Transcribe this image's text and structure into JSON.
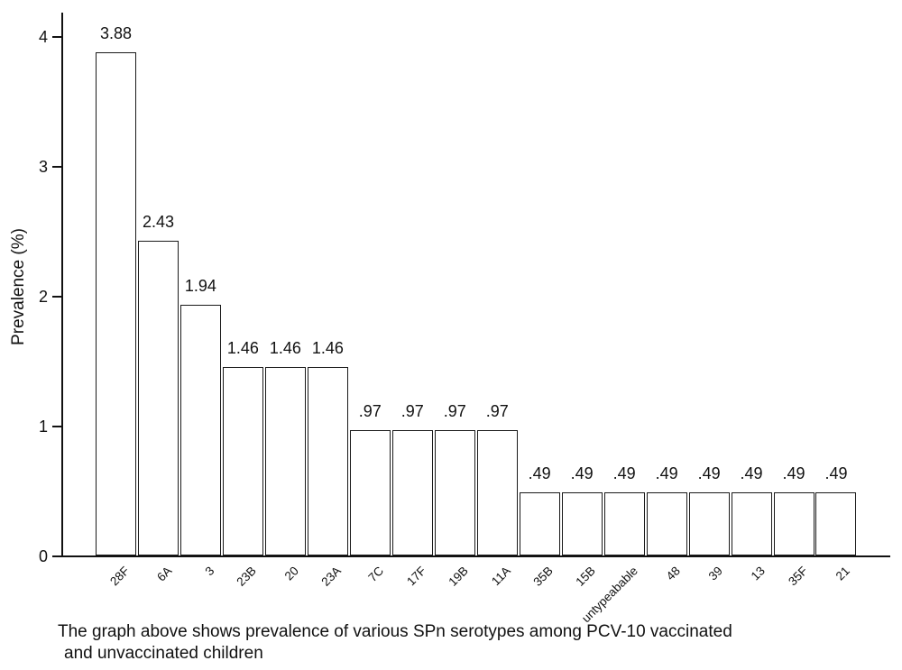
{
  "chart": {
    "y_axis_title": "Prevalence (%)",
    "caption": {
      "line1": "The graph above shows prevalence of various SPn serotypes among PCV-10 vaccinated",
      "line2": "and unvaccinated children"
    }
  },
  "chart_data": {
    "type": "bar",
    "title": "",
    "xlabel": "",
    "ylabel": "Prevalence (%)",
    "categories": [
      "28F",
      "6A",
      "3",
      "23B",
      "20",
      "23A",
      "7C",
      "17F",
      "19B",
      "11A",
      "35B",
      "15B",
      "untypeabable",
      "48",
      "39",
      "13",
      "35F",
      "21"
    ],
    "values": [
      3.88,
      2.43,
      1.94,
      1.46,
      1.46,
      1.46,
      0.97,
      0.97,
      0.97,
      0.97,
      0.49,
      0.49,
      0.49,
      0.49,
      0.49,
      0.49,
      0.49,
      0.49
    ],
    "value_labels": [
      "3.88",
      "2.43",
      "1.94",
      "1.46",
      "1.46",
      "1.46",
      ".97",
      ".97",
      ".97",
      ".97",
      ".49",
      ".49",
      ".49",
      ".49",
      ".49",
      ".49",
      ".49",
      ".49"
    ],
    "y_ticks": [
      0,
      1,
      2,
      3,
      4
    ],
    "ylim": [
      0,
      4.19
    ],
    "grid": false,
    "legend": "none",
    "bar_fill": "#ffffff",
    "bar_border": "#1a1a1a"
  }
}
